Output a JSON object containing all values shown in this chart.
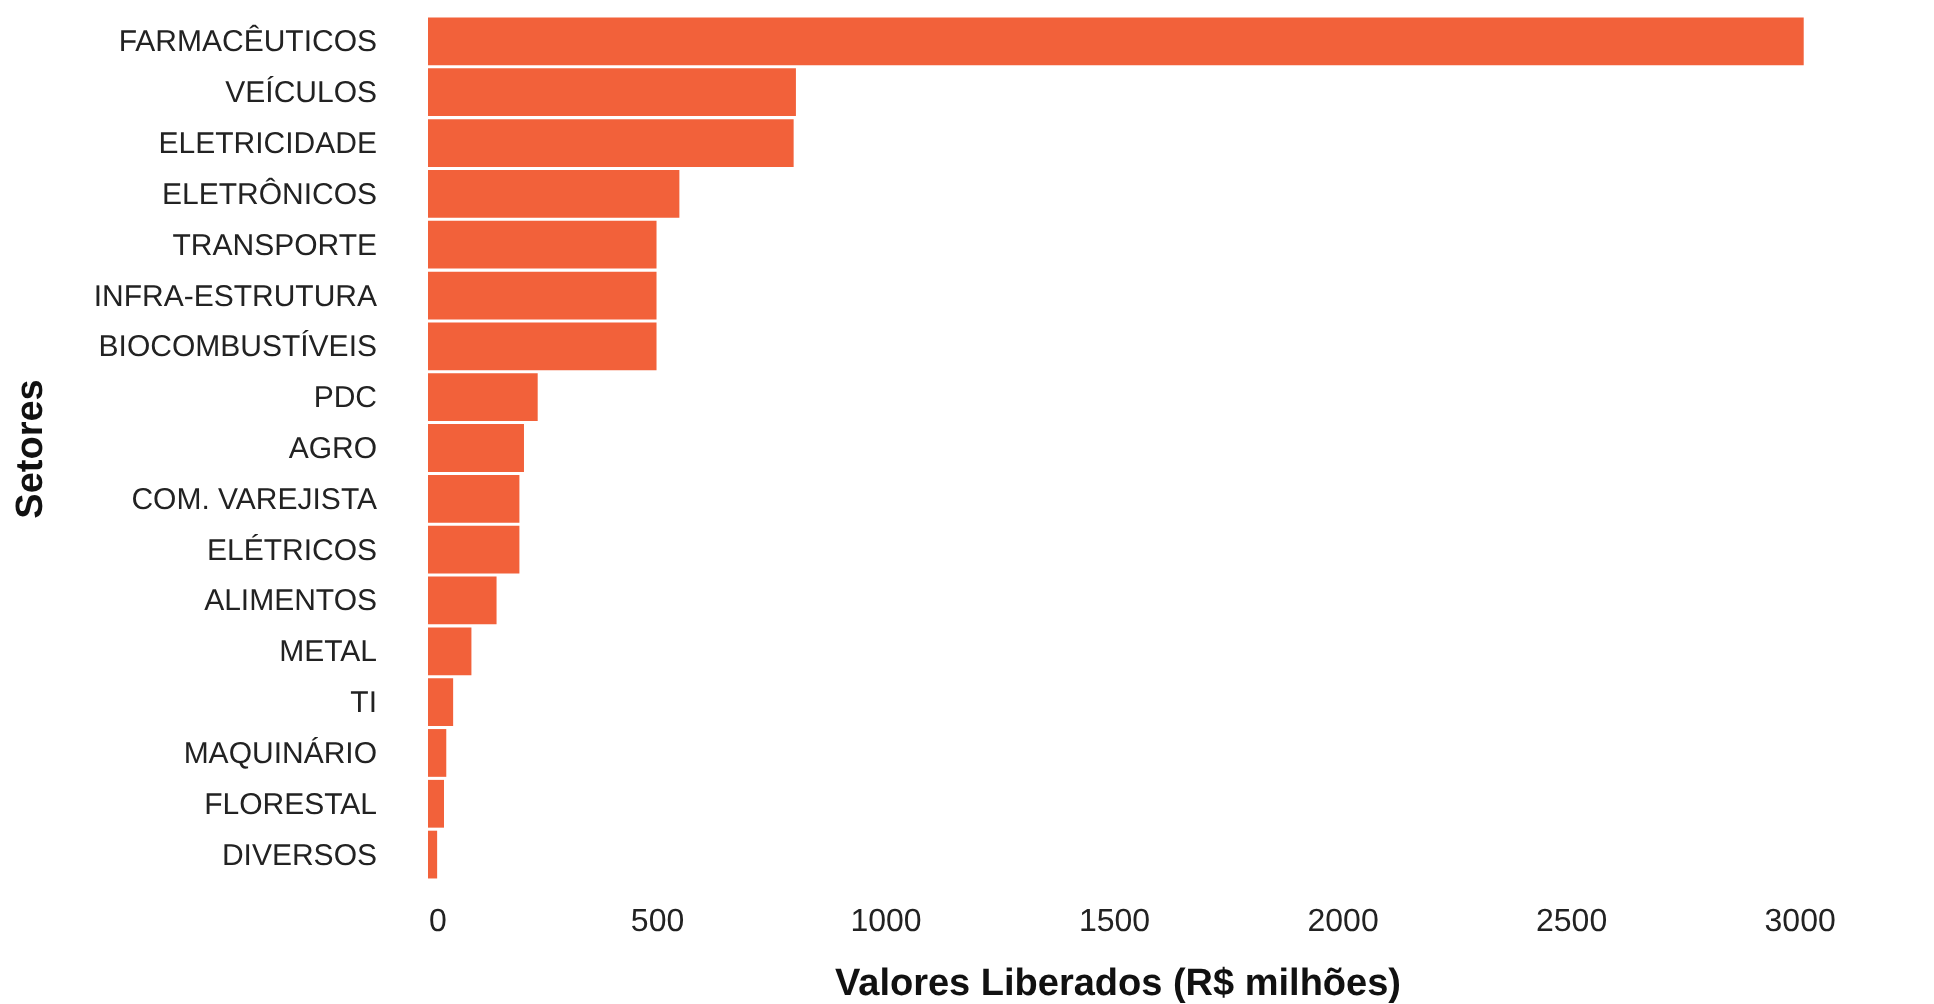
{
  "chart_data": {
    "type": "bar",
    "orientation": "horizontal",
    "xlabel": "Valores Liberados (R$ milhões)",
    "ylabel": "Setores",
    "categories": [
      "FARMACÊUTICOS",
      "VEÍCULOS",
      "ELETRICIDADE",
      "ELETRÔNICOS",
      "TRANSPORTE",
      "INFRA-ESTRUTURA",
      "BIOCOMBUSTÍVEIS",
      "PDC",
      "AGRO",
      "COM. VAREJISTA",
      "ELÉTRICOS",
      "ALIMENTOS",
      "METAL",
      "TI",
      "MAQUINÁRIO",
      "FLORESTAL",
      "DIVERSOS"
    ],
    "values": [
      3010,
      805,
      800,
      550,
      500,
      500,
      500,
      240,
      210,
      200,
      200,
      150,
      95,
      55,
      40,
      35,
      20
    ],
    "color": "#f2613a",
    "xlim": [
      0,
      3015
    ],
    "xticks": [
      0,
      500,
      1000,
      1500,
      2000,
      2500,
      3000
    ],
    "grid": false
  }
}
